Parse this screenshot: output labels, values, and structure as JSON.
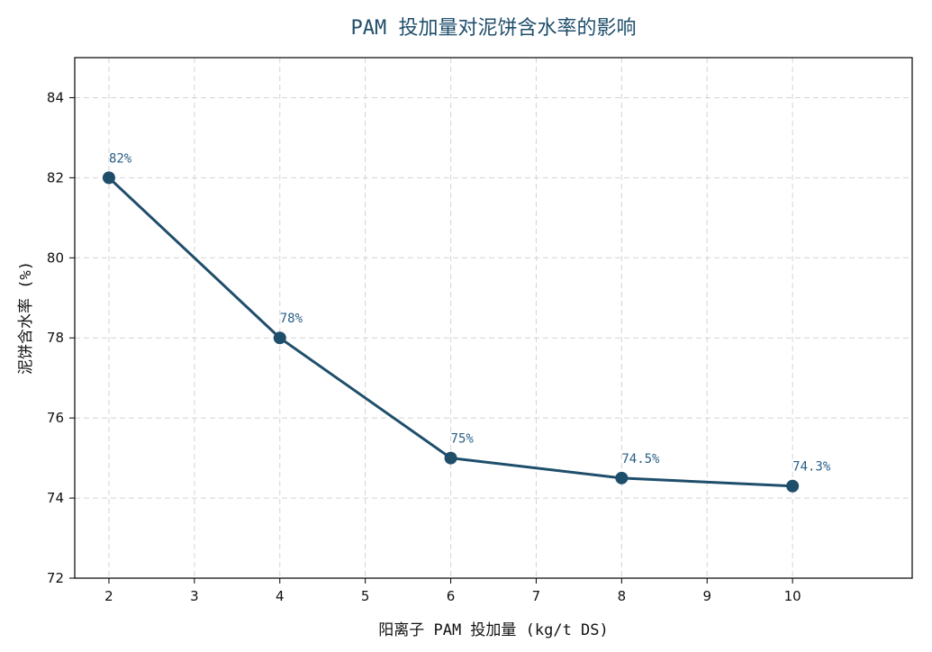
{
  "chart_data": {
    "type": "line",
    "title": "PAM 投加量对泥饼含水率的影响",
    "xlabel": "阳离子 PAM 投加量 (kg/t DS)",
    "ylabel": "泥饼含水率 (%)",
    "x": [
      2,
      4,
      6,
      8,
      10
    ],
    "series": [
      {
        "values": [
          82,
          78,
          75,
          74.5,
          74.3
        ],
        "labels": [
          "82%",
          "78%",
          "75%",
          "74.5%",
          "74.3%"
        ],
        "color": "#1f4e6b"
      }
    ],
    "xlim": [
      1.6,
      11.4
    ],
    "ylim": [
      72,
      85
    ],
    "xticks": [
      2,
      3,
      4,
      5,
      6,
      7,
      8,
      9,
      10
    ],
    "yticks": [
      72,
      74,
      76,
      78,
      80,
      82,
      84
    ],
    "grid": true,
    "legend": "none"
  }
}
